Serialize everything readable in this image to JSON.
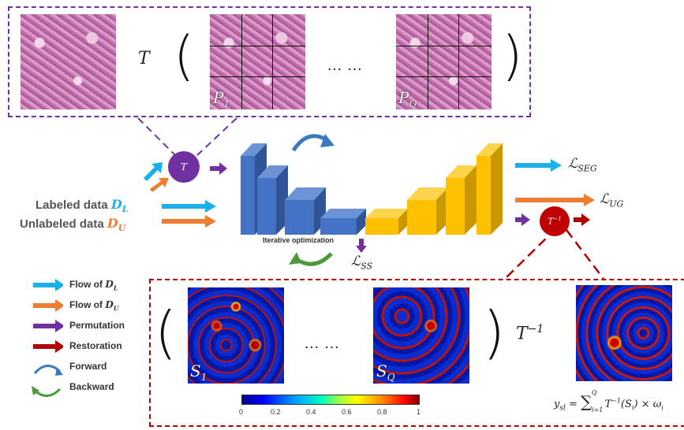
{
  "top_panel": {
    "op": "T",
    "patch_first": "P",
    "patch_first_sub": "1",
    "patch_last": "P",
    "patch_last_sub": "Q",
    "ellipsis": "… …"
  },
  "permute_node": "T",
  "labeled_label": "Labeled data",
  "labeled_sym": "D",
  "labeled_sub": "L",
  "unlabeled_label": "Unlabeled data",
  "unlabeled_sym": "D",
  "unlabeled_sub": "U",
  "unet_caption": "Iterative optimization",
  "losses": {
    "seg": "ℒ",
    "seg_sub": "SEG",
    "ug": "ℒ",
    "ug_sub": "UG",
    "ss": "ℒ",
    "ss_sub": "SS"
  },
  "restore_node": "T",
  "restore_node_sup": "−1",
  "legend": [
    {
      "label": "Flow of ",
      "sym": "D",
      "sub": "L",
      "color": "#1ab0ea"
    },
    {
      "label": "Flow of ",
      "sym": "D",
      "sub": "U",
      "color": "#ee7d31"
    },
    {
      "label": "Permutation",
      "color": "#7030a0"
    },
    {
      "label": "Restoration",
      "color": "#b00000"
    },
    {
      "label": "Forward",
      "color": "#3a7bbf"
    },
    {
      "label": "Backward",
      "color": "#4a9a3a"
    }
  ],
  "bottom_panel": {
    "map_first": "S",
    "map_first_sub": "1",
    "map_last": "S",
    "map_last_sub": "Q",
    "ellipsis": "… …",
    "inv_op": "T",
    "inv_sup": "−1",
    "colorbar_ticks": [
      "0",
      "0.2",
      "0.4",
      "0.6",
      "0.8",
      "1"
    ],
    "formula_lhs": "y",
    "formula_lhs_sub": "sl",
    "formula_eq": "=",
    "formula_sum_top": "Q",
    "formula_sum_bottom": "i=1",
    "formula_body": "T",
    "formula_body_sup": "−1",
    "formula_arg": "(S",
    "formula_arg_sub": "i",
    "formula_tail": ") × ω",
    "formula_tail_sub": "i"
  },
  "colors": {
    "purple": "#7030a0",
    "red": "#b00000",
    "blue": "#1ab0ea",
    "orange": "#ee7d31",
    "unet_blue": "#4472c4",
    "unet_yellow": "#ffc000"
  }
}
